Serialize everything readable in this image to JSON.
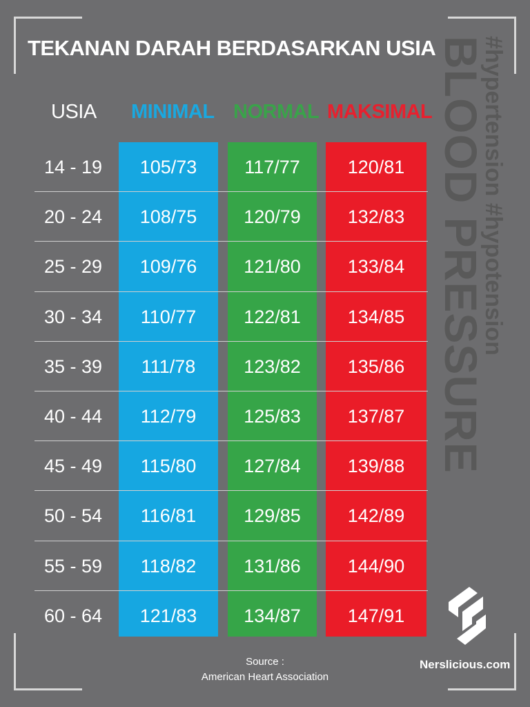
{
  "title": "TEKANAN DARAH BERDASARKAN USIA",
  "headers": {
    "usia": "USIA",
    "minimal": "MINIMAL",
    "normal": "NORMAL",
    "maksimal": "MAKSIMAL"
  },
  "rows": [
    {
      "age": "14 - 19",
      "min": "105/73",
      "normal": "117/77",
      "max": "120/81"
    },
    {
      "age": "20 - 24",
      "min": "108/75",
      "normal": "120/79",
      "max": "132/83"
    },
    {
      "age": "25 - 29",
      "min": "109/76",
      "normal": "121/80",
      "max": "133/84"
    },
    {
      "age": "30 - 34",
      "min": "110/77",
      "normal": "122/81",
      "max": "134/85"
    },
    {
      "age": "35 - 39",
      "min": "111/78",
      "normal": "123/82",
      "max": "135/86"
    },
    {
      "age": "40 - 44",
      "min": "112/79",
      "normal": "125/83",
      "max": "137/87"
    },
    {
      "age": "45 - 49",
      "min": "115/80",
      "normal": "127/84",
      "max": "139/88"
    },
    {
      "age": "50 - 54",
      "min": "116/81",
      "normal": "129/85",
      "max": "142/89"
    },
    {
      "age": "55 - 59",
      "min": "118/82",
      "normal": "131/86",
      "max": "144/90"
    },
    {
      "age": "60 - 64",
      "min": "121/83",
      "normal": "134/87",
      "max": "147/91"
    }
  ],
  "side": {
    "big": "BLOOD PRESSURE",
    "tags": "#hypertension #hypotension"
  },
  "source": {
    "label": "Source :",
    "name": "American Heart Association"
  },
  "brand": "Nerslicious.com",
  "colors": {
    "background": "#6d6d6f",
    "minimal": "#16a7e1",
    "normal": "#36a548",
    "maksimal": "#ea1c28"
  }
}
